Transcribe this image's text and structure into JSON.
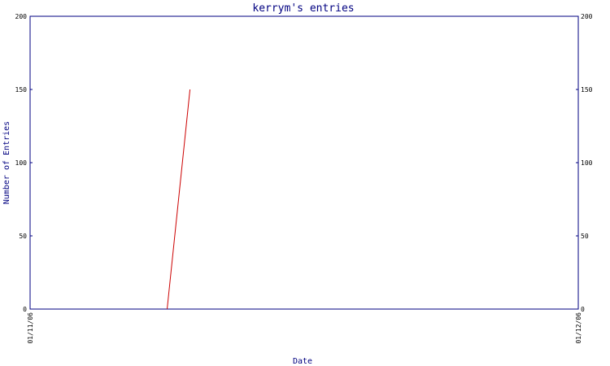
{
  "chart_data": {
    "type": "line",
    "title": "kerrym's entries",
    "xlabel": "Date",
    "ylabel": "Number of Entries",
    "ylim": [
      0,
      200
    ],
    "yticks": [
      "0",
      "50",
      "100",
      "150",
      "200"
    ],
    "xlim": [
      "2006-01-11",
      "2006-01-12"
    ],
    "xticks": [
      {
        "date": "2006-01-11",
        "label": "01/11/06"
      },
      {
        "date": "2006-01-12",
        "label": "01/12/06"
      }
    ],
    "series": [
      {
        "points": [
          {
            "x": "2006-01-11 06:00",
            "y": 0
          },
          {
            "x": "2006-01-11 07:00",
            "y": 150
          }
        ]
      }
    ],
    "grid": false,
    "colors": {
      "axis": "#000080",
      "line": "#cc0000"
    }
  }
}
